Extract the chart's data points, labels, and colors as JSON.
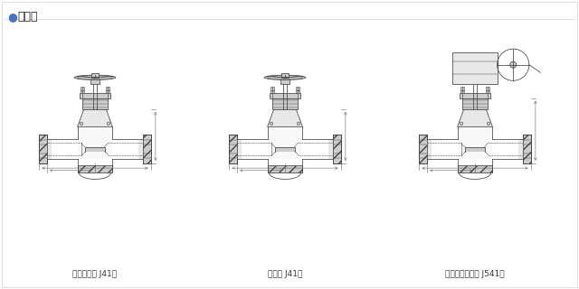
{
  "title": "结构图",
  "title_prefix": "●",
  "title_prefix_color": "#4472C4",
  "background_color": "#ffffff",
  "valve1_label": "鍛焊截止阀 J41型",
  "valve2_label": "截止阀 J41型",
  "valve3_label": "令齿轮传动闸阀 J541型",
  "line_color": "#444444",
  "dim_color": "#666666",
  "hatch_color": "#888888",
  "fill_light": "#e8e8e8",
  "fill_medium": "#cccccc",
  "label_fontsize": 6.5,
  "title_fontsize": 9,
  "fig_width": 6.4,
  "fig_height": 3.2,
  "dpi": 100
}
